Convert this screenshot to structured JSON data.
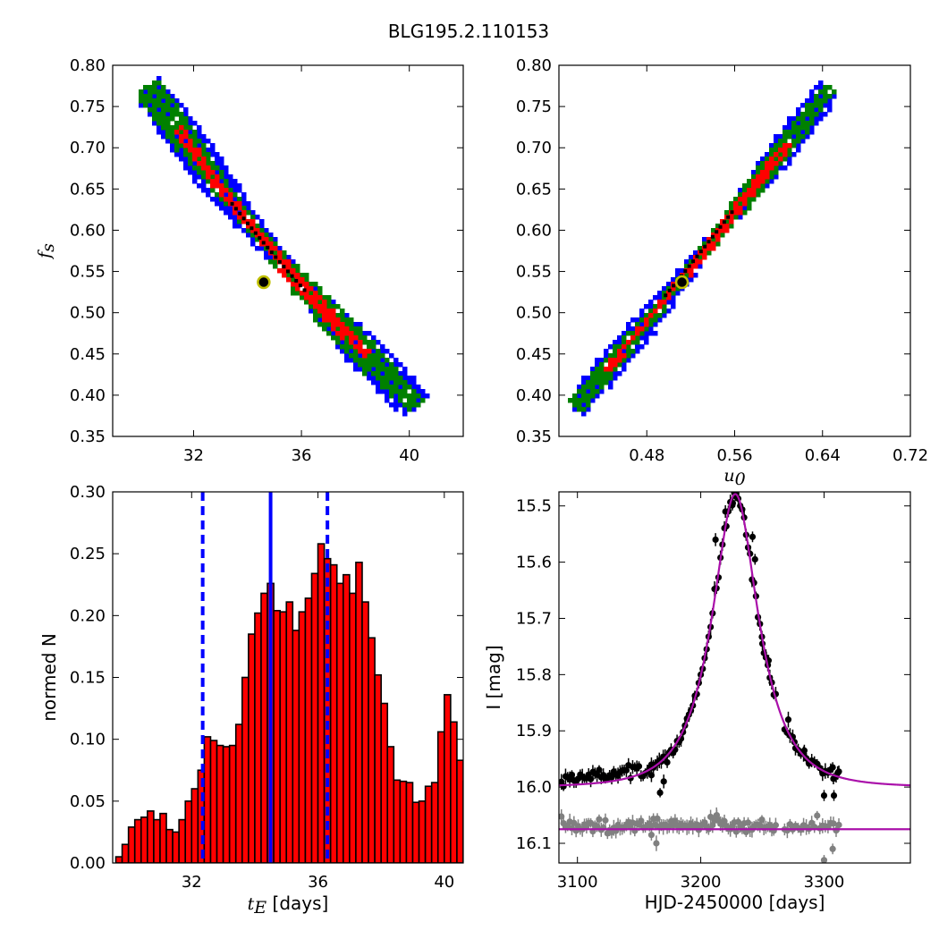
{
  "title": "BLG195.2.110153",
  "chart_data": [
    {
      "id": "ax1",
      "type": "heatmap",
      "xlabel": "",
      "ylabel": "f_s",
      "xlim": [
        29.0,
        42.0
      ],
      "ylim": [
        0.35,
        0.8
      ],
      "xticks": [
        32,
        36,
        40
      ],
      "yticks": [
        0.35,
        0.4,
        0.45,
        0.5,
        0.55,
        0.6,
        0.65,
        0.7,
        0.75,
        0.8
      ],
      "colors": {
        "outer": "#0000ff",
        "middle": "#008000",
        "inner": "#ff0000",
        "core": "#000000",
        "best_fill": "#000000",
        "best_ring": "#bfbf00"
      },
      "band": {
        "x_start": 30.2,
        "y_start": 0.775,
        "x_end": 40.2,
        "y_end": 0.388
      },
      "best_fit": {
        "x": 34.6,
        "y": 0.537
      }
    },
    {
      "id": "ax2",
      "type": "heatmap",
      "xlabel": "u_0",
      "ylabel": "",
      "xlim": [
        0.4,
        0.72
      ],
      "ylim": [
        0.35,
        0.8
      ],
      "xticks": [
        0.48,
        0.56,
        0.64,
        0.72
      ],
      "yticks": [
        0.35,
        0.4,
        0.45,
        0.5,
        0.55,
        0.6,
        0.65,
        0.7,
        0.75,
        0.8
      ],
      "colors": {
        "outer": "#0000ff",
        "middle": "#008000",
        "inner": "#ff0000",
        "core": "#000000",
        "best_fill": "#000000",
        "best_ring": "#bfbf00"
      },
      "band": {
        "x_start": 0.414,
        "y_start": 0.388,
        "x_end": 0.645,
        "y_end": 0.775
      },
      "best_fit": {
        "x": 0.512,
        "y": 0.537
      }
    },
    {
      "id": "ax3",
      "type": "bar",
      "xlabel": "t_E [days]",
      "ylabel": "normed N",
      "xlim": [
        29.5,
        40.6
      ],
      "ylim": [
        0.0,
        0.3
      ],
      "xticks": [
        32,
        36,
        40
      ],
      "yticks": [
        0.0,
        0.05,
        0.1,
        0.15,
        0.2,
        0.25,
        0.3
      ],
      "bin_start": 29.6,
      "bin_width": 0.2,
      "values": [
        0.005,
        0.015,
        0.029,
        0.035,
        0.037,
        0.042,
        0.035,
        0.04,
        0.027,
        0.025,
        0.035,
        0.05,
        0.06,
        0.075,
        0.102,
        0.099,
        0.095,
        0.094,
        0.095,
        0.112,
        0.15,
        0.185,
        0.202,
        0.218,
        0.226,
        0.204,
        0.203,
        0.211,
        0.188,
        0.203,
        0.214,
        0.234,
        0.258,
        0.246,
        0.241,
        0.226,
        0.233,
        0.218,
        0.243,
        0.211,
        0.182,
        0.152,
        0.129,
        0.094,
        0.067,
        0.066,
        0.065,
        0.049,
        0.05,
        0.062,
        0.065,
        0.106,
        0.136,
        0.114,
        0.083,
        0.066,
        0.049,
        0.045,
        0.029,
        0.031,
        0.034,
        0.02,
        0.012,
        0.02,
        0.012,
        0.018,
        0.008,
        0.015,
        0.009,
        0.011,
        0.005
      ],
      "bar_color": "#ff0000",
      "line_color": "#0000ff",
      "median": 34.5,
      "lower": 32.35,
      "upper": 36.3
    },
    {
      "id": "ax4",
      "type": "scatter",
      "xlabel": "HJD-2450000 [days]",
      "ylabel": "I [mag]",
      "xlim": [
        3085,
        3370
      ],
      "ylim": [
        16.135,
        15.475
      ],
      "xticks": [
        3100,
        3200,
        3300
      ],
      "yticks": [
        15.5,
        15.6,
        15.7,
        15.8,
        15.9,
        16.0,
        16.1
      ],
      "model": {
        "t0": 3228.0,
        "tE": 34.5,
        "u0": 0.51,
        "fs": 0.537,
        "ibase": 16.0,
        "color": "#aa10aa"
      },
      "residual_baseline": 16.075,
      "data_color": "#000000",
      "residual_color": "#808080",
      "highlight_points": [
        {
          "t": 3228,
          "mag": 15.482
        },
        {
          "t": 3220,
          "mag": 15.51
        },
        {
          "t": 3226,
          "mag": 15.495
        },
        {
          "t": 3212,
          "mag": 15.56
        },
        {
          "t": 3242,
          "mag": 15.555
        },
        {
          "t": 3244,
          "mag": 15.595
        },
        {
          "t": 3167,
          "mag": 16.01
        },
        {
          "t": 3160,
          "mag": 15.96
        },
        {
          "t": 3170,
          "mag": 15.99
        },
        {
          "t": 3300,
          "mag": 16.015
        },
        {
          "t": 3307,
          "mag": 15.965
        },
        {
          "t": 3311,
          "mag": 15.975
        },
        {
          "t": 3308,
          "mag": 16.015
        },
        {
          "t": 3271,
          "mag": 15.88
        },
        {
          "t": 3276,
          "mag": 15.92
        },
        {
          "t": 3284,
          "mag": 15.935
        },
        {
          "t": 3255,
          "mag": 15.775
        },
        {
          "t": 3250,
          "mag": 15.745
        }
      ],
      "highlight_residuals": [
        {
          "t": 3160,
          "mag": 16.085
        },
        {
          "t": 3164,
          "mag": 16.1
        },
        {
          "t": 3300,
          "mag": 16.13
        },
        {
          "t": 3307,
          "mag": 16.11
        },
        {
          "t": 3213,
          "mag": 16.05
        }
      ]
    }
  ]
}
